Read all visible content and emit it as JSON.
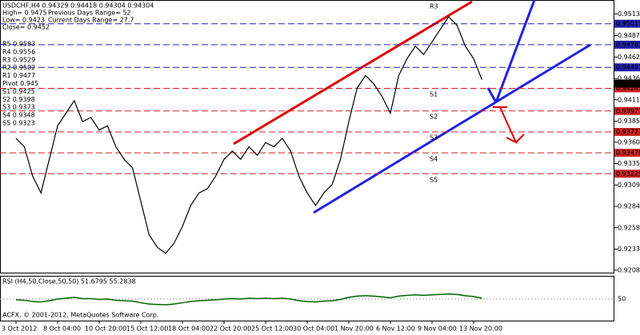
{
  "chart_data": {
    "type": "line",
    "title": "USDCHF,H4  0.94329 0.94418 0.94304 0.94304",
    "info": [
      "High= 0.9475",
      "Previous Days Range= 52",
      "Low= 0.9423",
      "Current Days Range= 27.7",
      "Close= 0.9452"
    ],
    "pivot_table": [
      "R5 0.9583",
      "R4 0.9556",
      "R3 0.9529",
      "R2 0.9502",
      "R1 0.9477",
      "Pivot 0.945",
      "S1 0.9425",
      "S2 0.9398",
      "S3 0.9373",
      "S4 0.9348",
      "S5 0.9323"
    ],
    "level_labels": [
      "R3",
      "S1",
      "S2",
      "S3",
      "S4",
      "S5"
    ],
    "price_levels": [
      0.95017,
      0.94767,
      0.94497,
      0.94247,
      0.93977,
      0.93727,
      0.93478,
      0.93229
    ],
    "last_price": 0.94304,
    "categories": [
      "3 Oct 2012",
      null,
      null,
      null,
      null,
      "8 Oct 04:00",
      null,
      null,
      null,
      null,
      "10 Oct 20:00",
      null,
      null,
      null,
      null,
      "15 Oct 12:00",
      null,
      null,
      null,
      null,
      "18 Oct 04:00",
      null,
      null,
      null,
      null,
      "22 Oct 20:00",
      null,
      null,
      null,
      null,
      "25 Oct 12:00",
      null,
      null,
      null,
      null,
      "30 Oct 04:00",
      null,
      null,
      null,
      null,
      "1 Nov 20:00",
      null,
      null,
      null,
      null,
      "6 Nov 12:00",
      null,
      null,
      null,
      null,
      "9 Nov 04:00",
      null,
      null,
      null,
      null,
      "13 Nov 20:00",
      null
    ],
    "series": [
      {
        "name": "USDCHF",
        "color": "#000000",
        "values": [
          0.9365,
          0.9355,
          0.932,
          0.93,
          0.934,
          0.938,
          0.9395,
          0.941,
          0.9385,
          0.939,
          0.9375,
          0.938,
          0.9355,
          0.934,
          0.933,
          0.929,
          0.925,
          0.9235,
          0.9228,
          0.924,
          0.926,
          0.9285,
          0.93,
          0.9305,
          0.932,
          0.934,
          0.935,
          0.934,
          0.9355,
          0.9345,
          0.936,
          0.9355,
          0.9365,
          0.935,
          0.932,
          0.93,
          0.9285,
          0.93,
          0.931,
          0.934,
          0.9385,
          0.9425,
          0.944,
          0.943,
          0.9415,
          0.9395,
          0.944,
          0.946,
          0.9475,
          0.9465,
          0.948,
          0.9495,
          0.951,
          0.95,
          0.9475,
          0.946,
          0.9435
        ]
      }
    ],
    "ylim": [
      0.9204,
      0.953
    ],
    "yticks": [
      0.95135,
      0.94875,
      {
        "value": 0.9462,
        "label": "0.94620"
      },
      0.94365,
      {
        "value": 0.9411,
        "label": "0.94110"
      },
      0.93855,
      0.93605,
      {
        "value": 0.9335,
        "label": "0.93350"
      },
      0.93095,
      {
        "value": 0.9284,
        "label": "0.92840"
      },
      0.92585,
      {
        "value": 0.9233,
        "label": "0.92330"
      },
      {
        "value": 0.9208,
        "label": "0.92080"
      }
    ],
    "rsi": {
      "title": "RSI (H4,50,Close,50,50) 51.6795 55.2838",
      "color": "#006400",
      "values": [
        48,
        47,
        44,
        43,
        46,
        50,
        52,
        54,
        51,
        51,
        49,
        50,
        47,
        46,
        45,
        41,
        38,
        37,
        36,
        38,
        41,
        44,
        46,
        47,
        48,
        50,
        51,
        50,
        52,
        51,
        52,
        51,
        52,
        50,
        46,
        44,
        43,
        45,
        46,
        49,
        54,
        57,
        58,
        57,
        55,
        53,
        57,
        59,
        60,
        59,
        60,
        61,
        62,
        61,
        58,
        56,
        52
      ],
      "ylim": [
        0,
        100
      ],
      "yticks": [
        50
      ]
    },
    "footer": "ACFX, © 2001-2012, MetaQuotes Software Corp."
  }
}
